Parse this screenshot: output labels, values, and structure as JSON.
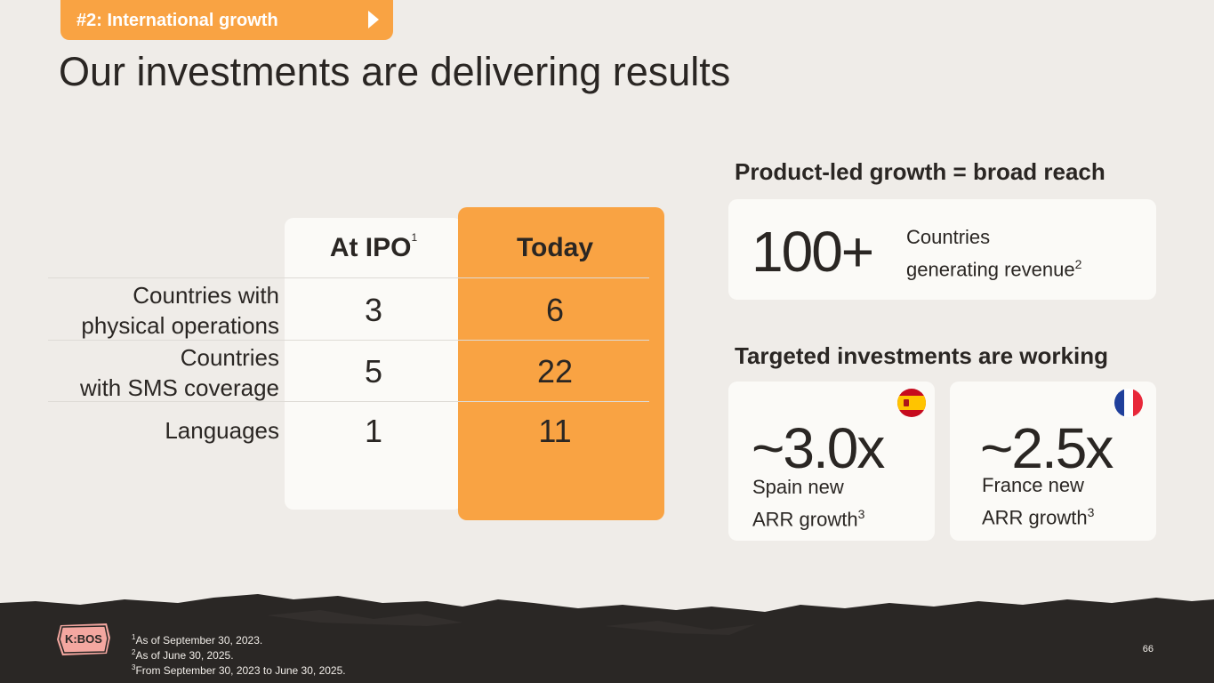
{
  "section_tag": {
    "label": "#2: International growth",
    "icon": "play-arrow-icon"
  },
  "title": "Our investments are delivering results",
  "table": {
    "col_ipo": "At IPO",
    "col_ipo_note": "1",
    "col_today": "Today",
    "rows": [
      {
        "label_line1": "Countries with",
        "label_line2": "physical operations",
        "ipo": "3",
        "today": "6"
      },
      {
        "label_line1": "Countries",
        "label_line2": "with SMS coverage",
        "ipo": "5",
        "today": "22"
      },
      {
        "label_line1": "Languages",
        "label_line2": "",
        "ipo": "1",
        "today": "11"
      }
    ]
  },
  "reach": {
    "heading": "Product-led growth = broad reach",
    "value": "100+",
    "desc_line1": "Countries",
    "desc_line2": "generating revenue",
    "note": "2"
  },
  "investments": {
    "heading": "Targeted investments are working",
    "cards": [
      {
        "value": "~3.0x",
        "line1": "Spain new",
        "line2": "ARR growth",
        "note": "3",
        "flag": "spain-flag-icon"
      },
      {
        "value": "~2.5x",
        "line1": "France new",
        "line2": "ARR growth",
        "note": "3",
        "flag": "france-flag-icon"
      }
    ]
  },
  "footnotes": [
    {
      "n": "1",
      "text": "As of September 30, 2023."
    },
    {
      "n": "2",
      "text": "As of June 30, 2025."
    },
    {
      "n": "3",
      "text": "From September 30, 2023 to June 30, 2025."
    }
  ],
  "logo_text": "K:BOS",
  "page_number": "66",
  "colors": {
    "accent": "#f9a343",
    "background": "#efece8",
    "card": "#fbfaf7",
    "footer": "#2a2725"
  }
}
